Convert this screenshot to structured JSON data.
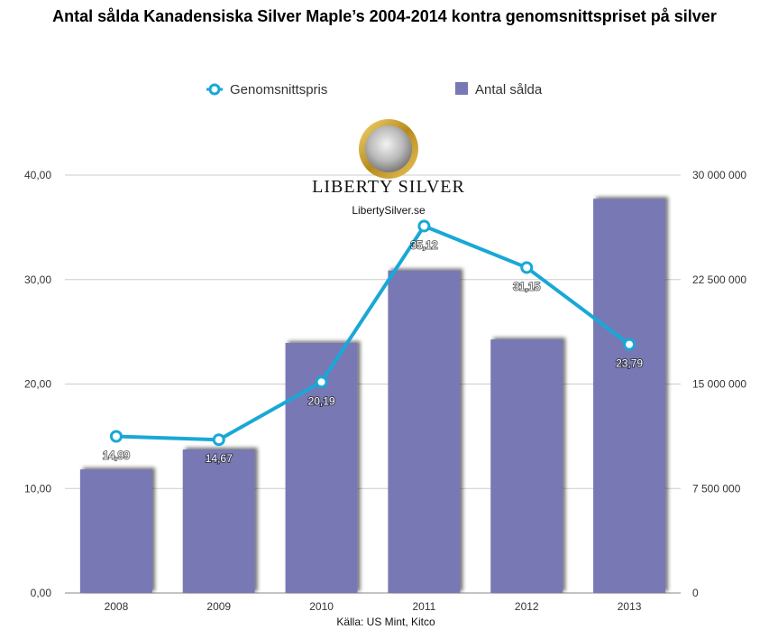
{
  "chart_data": {
    "type": "bar",
    "title": "Antal sålda Kanadensiska Silver Maple’s 2004-2014 kontra genomsnittspriset på silver",
    "categories": [
      "2008",
      "2009",
      "2010",
      "2011",
      "2012",
      "2013"
    ],
    "series": [
      {
        "name": "Antal sålda",
        "type": "bar",
        "axis": "right",
        "values": [
          8870000,
          10300000,
          17950000,
          23150000,
          18200000,
          28300000
        ]
      },
      {
        "name": "Genomsnittspris",
        "type": "line",
        "axis": "left",
        "values": [
          14.99,
          14.67,
          20.19,
          35.12,
          31.15,
          23.79
        ],
        "labels": [
          "14,99",
          "14,67",
          "20,19",
          "35,12",
          "31,15",
          "23,79"
        ]
      }
    ],
    "y_left": {
      "min": 0,
      "max": 40,
      "ticks": [
        "0,00",
        "10,00",
        "20,00",
        "30,00",
        "40,00"
      ]
    },
    "y_right": {
      "min": 0,
      "max": 30000000,
      "ticks": [
        "0",
        "7 500 000",
        "15 000 000",
        "22 500 000",
        "30 000 000"
      ]
    },
    "legend": {
      "placement": "top-center",
      "items": [
        "Genomsnittspris",
        "Antal sålda"
      ]
    },
    "grid": true,
    "source": "Källa: US Mint, Kitco",
    "colors": {
      "bar": "#7878b4",
      "line": "#19a8d6",
      "grid": "#cccccc"
    }
  },
  "watermark": {
    "brand": "LIBERTY SILVER",
    "site": "LibertySilver.se"
  }
}
